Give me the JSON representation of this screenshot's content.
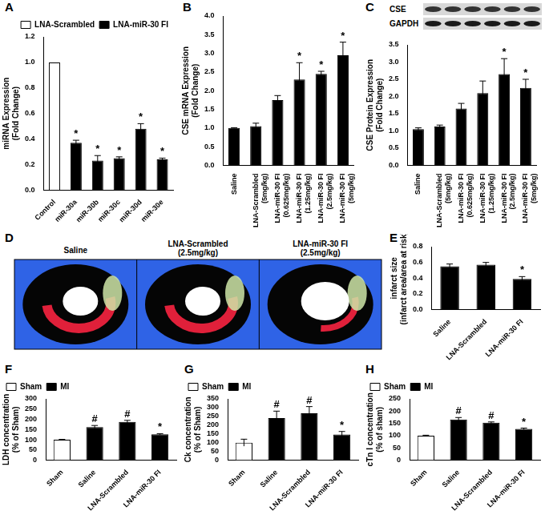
{
  "chart_data": [
    {
      "panel": "A",
      "type": "bar",
      "y_label": [
        "miRNA Expression",
        "(Fold Change)"
      ],
      "categories": [
        "Control",
        "miR-30a",
        "miR-30b",
        "miR-30c",
        "miR-30d",
        "miR-30e"
      ],
      "series": [
        {
          "name": "LNA-Scrambled",
          "color": "#ffffff",
          "values": [
            1.0,
            null,
            null,
            null,
            null,
            null
          ],
          "errors": [
            0,
            null,
            null,
            null,
            null,
            null
          ],
          "significance": [
            null,
            null,
            null,
            null,
            null,
            null
          ]
        },
        {
          "name": "LNA-miR-30 FI",
          "color": "#000000",
          "values": [
            null,
            0.37,
            0.23,
            0.25,
            0.48,
            0.24
          ],
          "errors": [
            null,
            0.02,
            0.04,
            0.01,
            0.04,
            0.01
          ],
          "significance": [
            null,
            "*",
            "*",
            "*",
            "*",
            "*"
          ]
        }
      ],
      "ylim": [
        0,
        1.2
      ],
      "yticks": [
        {
          "value": 0,
          "label": "0.0"
        },
        0.2,
        0.4,
        0.6,
        0.8,
        {
          "value": 1,
          "label": "1.0"
        },
        1.2
      ],
      "grid": false,
      "legend": "upper right"
    },
    {
      "panel": "B",
      "type": "bar",
      "y_label": [
        "CSE mRNA Expression",
        "(Fold Change)"
      ],
      "categories": [
        "Saline",
        "LNA-Scrambled (5mg/kg)",
        "LNA-miR-30 FI (0.625mg/kg)",
        "LNA-miR-30 FI (1.25mg/kg)",
        "LNA-miR-30 FI (2.5mg/kg)",
        "LNA-miR-30 FI (5mg/kg)"
      ],
      "values": [
        1.0,
        1.05,
        1.75,
        2.3,
        2.45,
        2.95
      ],
      "errors": [
        0.01,
        0.08,
        0.12,
        0.45,
        0.07,
        0.35
      ],
      "significance": [
        null,
        null,
        null,
        "*",
        "*",
        "*"
      ],
      "color": "#000000",
      "ylim": [
        0,
        4
      ],
      "yticks": [
        {
          "value": 0,
          "label": "0.0"
        },
        0.5,
        {
          "value": 1,
          "label": "1.0"
        },
        1.5,
        {
          "value": 2,
          "label": "2.0"
        },
        2.5,
        {
          "value": 3,
          "label": "3.0"
        },
        3.5,
        {
          "value": 4,
          "label": "4.0"
        }
      ],
      "grid": false
    },
    {
      "panel": "C",
      "type": "bar",
      "y_label": [
        "CSE Protein Expression",
        "(Fold Change)"
      ],
      "categories": [
        "Saline",
        "LNA-Scrambled (5mg/kg)",
        "LNA-miR-30 FI (0.625mg/kg)",
        "LNA-miR-30 FI (1.25mg/kg)",
        "LNA-miR-30 FI (2.5mg/kg)",
        "LNA-miR-30 FI (5mg/kg)"
      ],
      "values": [
        1.05,
        1.13,
        1.65,
        2.1,
        2.65,
        2.25
      ],
      "errors": [
        0.04,
        0.04,
        0.15,
        0.35,
        0.45,
        0.25
      ],
      "significance": [
        null,
        null,
        null,
        null,
        "*",
        "*"
      ],
      "color": "#000000",
      "ylim": [
        0,
        3.5
      ],
      "yticks": [
        {
          "value": 0,
          "label": "0.0"
        },
        0.5,
        {
          "value": 1,
          "label": "1.0"
        },
        1.5,
        {
          "value": 2,
          "label": "2.0"
        },
        2.5,
        {
          "value": 3,
          "label": "3.0"
        },
        3.5
      ],
      "grid": false
    },
    {
      "panel": "E",
      "type": "bar",
      "y_label": [
        "infarct size",
        "(infarct area/area at risk)"
      ],
      "categories": [
        "Saline",
        "LNA-Scrambled",
        "LNA-miR-30 FI"
      ],
      "values": [
        0.55,
        0.57,
        0.39
      ],
      "errors": [
        0.03,
        0.03,
        0.03
      ],
      "significance": [
        null,
        null,
        "*"
      ],
      "color": "#000000",
      "ylim": [
        0,
        0.8
      ],
      "yticks": [
        {
          "value": 0,
          "label": "0.0"
        },
        0.2,
        0.4,
        0.6,
        0.8
      ],
      "grid": false
    },
    {
      "panel": "F",
      "type": "bar",
      "y_label": [
        "LDH concentration",
        "(% of Sham)"
      ],
      "categories": [
        "Sham",
        "Saline",
        "LNA-Scrambled",
        "LNA-miR-30 FI"
      ],
      "series": [
        {
          "name": "Sham",
          "color": "#ffffff",
          "values": [
            100,
            null,
            null,
            null
          ],
          "errors": [
            2,
            null,
            null,
            null
          ],
          "significance": [
            null,
            null,
            null,
            null
          ]
        },
        {
          "name": "MI",
          "color": "#000000",
          "values": [
            null,
            162,
            187,
            127
          ],
          "errors": [
            null,
            8,
            8,
            3
          ],
          "significance": [
            null,
            "#",
            "#",
            "*"
          ]
        }
      ],
      "ylim": [
        0,
        300
      ],
      "yticks": [
        0,
        50,
        100,
        150,
        200,
        250,
        300
      ],
      "grid": false,
      "legend": "upper left"
    },
    {
      "panel": "G",
      "type": "bar",
      "y_label": [
        "Ck concentration",
        "(% of Sham)"
      ],
      "categories": [
        "Sham",
        "Saline",
        "LNA-Scrambled",
        "LNA-miR-30 FI"
      ],
      "series": [
        {
          "name": "Sham",
          "color": "#ffffff",
          "values": [
            100,
            null,
            null,
            null
          ],
          "errors": [
            20,
            null,
            null,
            null
          ],
          "significance": [
            null,
            null,
            null,
            null
          ]
        },
        {
          "name": "MI",
          "color": "#000000",
          "values": [
            null,
            240,
            268,
            147
          ],
          "errors": [
            null,
            40,
            38,
            17
          ],
          "significance": [
            null,
            "#",
            "#",
            "*"
          ]
        }
      ],
      "ylim": [
        0,
        350
      ],
      "yticks": [
        0,
        50,
        100,
        150,
        200,
        250,
        300,
        350
      ],
      "grid": false,
      "legend": "upper left"
    },
    {
      "panel": "H",
      "type": "bar",
      "y_label": [
        "cTn I concentration",
        "(% of sham)"
      ],
      "categories": [
        "Sham",
        "Saline",
        "LNA-Scrambled",
        "LNA-miR-30 FI"
      ],
      "series": [
        {
          "name": "Sham",
          "color": "#ffffff",
          "values": [
            100,
            null,
            null,
            null
          ],
          "errors": [
            2,
            null,
            null,
            null
          ],
          "significance": [
            null,
            null,
            null,
            null
          ]
        },
        {
          "name": "MI",
          "color": "#000000",
          "values": [
            null,
            166,
            153,
            128
          ],
          "errors": [
            null,
            8,
            3,
            3
          ],
          "significance": [
            null,
            "#",
            "#",
            "*"
          ]
        }
      ],
      "ylim": [
        0,
        250
      ],
      "yticks": [
        0,
        50,
        100,
        150,
        200,
        250
      ],
      "grid": false,
      "legend": "upper left"
    }
  ],
  "blot": {
    "panel": "C",
    "labels": [
      "CSE",
      "GAPDH"
    ]
  },
  "images": {
    "panel": "D",
    "labels": [
      "Saline",
      "LNA-Scrambled (2.5mg/kg)",
      "LNA-miR-30 FI (2.5mg/kg)"
    ]
  }
}
